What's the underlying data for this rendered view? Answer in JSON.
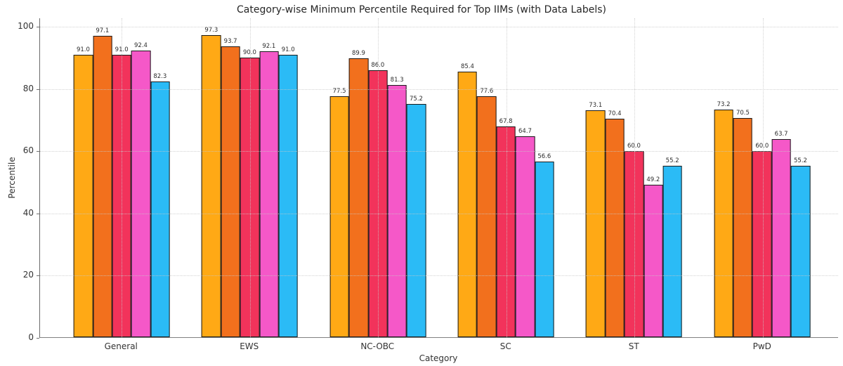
{
  "chart_data": {
    "type": "bar",
    "title": "Category-wise Minimum Percentile Required for Top IIMs (with Data Labels)",
    "xlabel": "Category",
    "ylabel": "Percentile",
    "categories": [
      "General",
      "EWS",
      "NC-OBC",
      "SC",
      "ST",
      "PwD"
    ],
    "series": [
      {
        "color": "#FFA915",
        "values": [
          91.0,
          97.3,
          77.5,
          85.4,
          73.1,
          73.2
        ]
      },
      {
        "color": "#F2701D",
        "values": [
          97.1,
          93.7,
          89.9,
          77.6,
          70.4,
          70.5
        ]
      },
      {
        "color": "#F2335B",
        "values": [
          91.0,
          90.0,
          86.0,
          67.8,
          60.0,
          60.0
        ]
      },
      {
        "color": "#F558C8",
        "values": [
          92.4,
          92.1,
          81.3,
          64.7,
          49.2,
          63.7
        ]
      },
      {
        "color": "#2BBBF6",
        "values": [
          82.3,
          91.0,
          75.2,
          56.6,
          55.2,
          55.2
        ]
      }
    ],
    "yticks": [
      0,
      20,
      40,
      60,
      80,
      100
    ],
    "ylim": [
      0,
      102.7
    ],
    "grid": "dotted",
    "legend": "none",
    "data_labels": true,
    "bar_edge_color": "#1a1a1a",
    "background": "#ffffff"
  }
}
